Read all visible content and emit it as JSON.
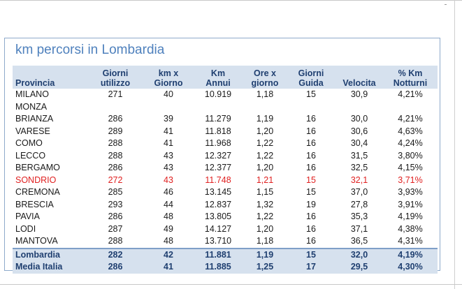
{
  "title": "km percorsi in Lombardia",
  "headers": [
    [
      "Provincia",
      ""
    ],
    [
      "Giorni",
      "utilizzo"
    ],
    [
      "km x",
      "Giorno"
    ],
    [
      "Km",
      "Annui"
    ],
    [
      "Ore x",
      "giorno"
    ],
    [
      "Giorni",
      "Guida"
    ],
    [
      "Velocita",
      ""
    ],
    [
      "% Km",
      "Notturni"
    ]
  ],
  "rows": [
    {
      "cells": [
        "MILANO",
        "271",
        "40",
        "10.919",
        "1,18",
        "15",
        "30,9",
        "4,21%"
      ]
    },
    {
      "cells": [
        "MONZA",
        "",
        "",
        "",
        "",
        "",
        "",
        ""
      ]
    },
    {
      "cells": [
        "BRIANZA",
        "286",
        "39",
        "11.279",
        "1,19",
        "16",
        "30,0",
        "4,21%"
      ]
    },
    {
      "cells": [
        "VARESE",
        "289",
        "41",
        "11.818",
        "1,20",
        "16",
        "30,6",
        "4,63%"
      ]
    },
    {
      "cells": [
        "COMO",
        "288",
        "41",
        "11.968",
        "1,22",
        "16",
        "30,4",
        "4,24%"
      ]
    },
    {
      "cells": [
        "LECCO",
        "288",
        "43",
        "12.327",
        "1,22",
        "16",
        "31,5",
        "3,80%"
      ]
    },
    {
      "cells": [
        "BERGAMO",
        "286",
        "43",
        "12.377",
        "1,20",
        "16",
        "32,5",
        "4,15%"
      ]
    },
    {
      "cells": [
        "SONDRIO",
        "272",
        "43",
        "11.748",
        "1,21",
        "15",
        "32,1",
        "3,71%"
      ],
      "highlight_color": "#e02020"
    },
    {
      "cells": [
        "CREMONA",
        "285",
        "46",
        "13.145",
        "1,15",
        "15",
        "37,0",
        "3,93%"
      ]
    },
    {
      "cells": [
        "BRESCIA",
        "293",
        "44",
        "12.837",
        "1,32",
        "19",
        "27,8",
        "3,91%"
      ]
    },
    {
      "cells": [
        "PAVIA",
        "286",
        "48",
        "13.805",
        "1,22",
        "16",
        "35,3",
        "4,19%"
      ]
    },
    {
      "cells": [
        "LODI",
        "287",
        "49",
        "14.127",
        "1,20",
        "16",
        "37,1",
        "4,38%"
      ]
    },
    {
      "cells": [
        "MANTOVA",
        "288",
        "48",
        "13.710",
        "1,18",
        "16",
        "36,5",
        "4,31%"
      ]
    }
  ],
  "totals": [
    {
      "cells": [
        "Lombardia",
        "282",
        "42",
        "11.881",
        "1,19",
        "15",
        "32,0",
        "4,19%"
      ]
    },
    {
      "cells": [
        "Media Italia",
        "286",
        "41",
        "11.885",
        "1,25",
        "17",
        "29,5",
        "4,30%"
      ]
    }
  ],
  "colors": {
    "title": "#4f81bd",
    "header_bg": "#d6e1ee",
    "header_text": "#1f3f70",
    "border": "#8eaacb",
    "highlight": "#e02020"
  }
}
